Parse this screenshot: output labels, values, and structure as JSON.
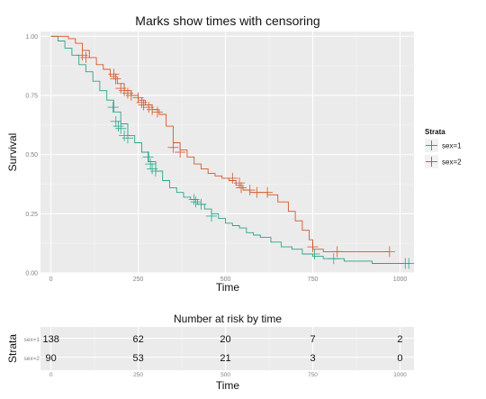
{
  "chart_data": [
    {
      "type": "line",
      "title": "Marks show times with censoring",
      "xlabel": "Time",
      "ylabel": "Survival",
      "xlim": [
        -30,
        1040
      ],
      "ylim": [
        0,
        1.02
      ],
      "x_ticks": [
        "0",
        "250",
        "500",
        "750",
        "1000"
      ],
      "y_ticks": [
        "0.00",
        "0.25",
        "0.50",
        "0.75",
        "1.00"
      ],
      "grid": true,
      "legend": {
        "title": "Strata",
        "position": "right"
      },
      "series": [
        {
          "name": "sex=1",
          "color": "#2aa58a",
          "points": [
            [
              0,
              1.0
            ],
            [
              20,
              0.98
            ],
            [
              40,
              0.95
            ],
            [
              60,
              0.92
            ],
            [
              80,
              0.88
            ],
            [
              100,
              0.85
            ],
            [
              120,
              0.81
            ],
            [
              140,
              0.77
            ],
            [
              160,
              0.73
            ],
            [
              180,
              0.68
            ],
            [
              200,
              0.63
            ],
            [
              220,
              0.58
            ],
            [
              240,
              0.55
            ],
            [
              260,
              0.51
            ],
            [
              280,
              0.47
            ],
            [
              300,
              0.43
            ],
            [
              320,
              0.39
            ],
            [
              340,
              0.36
            ],
            [
              360,
              0.34
            ],
            [
              380,
              0.32
            ],
            [
              400,
              0.31
            ],
            [
              420,
              0.29
            ],
            [
              440,
              0.27
            ],
            [
              460,
              0.25
            ],
            [
              480,
              0.23
            ],
            [
              500,
              0.21
            ],
            [
              520,
              0.2
            ],
            [
              540,
              0.19
            ],
            [
              560,
              0.17
            ],
            [
              580,
              0.16
            ],
            [
              600,
              0.15
            ],
            [
              630,
              0.13
            ],
            [
              660,
              0.11
            ],
            [
              690,
              0.1
            ],
            [
              720,
              0.08
            ],
            [
              750,
              0.07
            ],
            [
              780,
              0.06
            ],
            [
              800,
              0.06
            ],
            [
              840,
              0.05
            ],
            [
              880,
              0.05
            ],
            [
              920,
              0.04
            ],
            [
              960,
              0.04
            ],
            [
              1000,
              0.04
            ],
            [
              1020,
              0.04
            ]
          ],
          "censor": [
            [
              178,
              0.7
            ],
            [
              186,
              0.64
            ],
            [
              193,
              0.62
            ],
            [
              200,
              0.61
            ],
            [
              210,
              0.58
            ],
            [
              220,
              0.57
            ],
            [
              278,
              0.49
            ],
            [
              285,
              0.46
            ],
            [
              290,
              0.44
            ],
            [
              300,
              0.43
            ],
            [
              410,
              0.31
            ],
            [
              415,
              0.3
            ],
            [
              430,
              0.29
            ],
            [
              460,
              0.24
            ],
            [
              755,
              0.08
            ],
            [
              810,
              0.06
            ],
            [
              1015,
              0.04
            ],
            [
              1025,
              0.04
            ]
          ]
        },
        {
          "name": "sex=2",
          "color": "#d4582a",
          "points": [
            [
              0,
              1.0
            ],
            [
              30,
              1.0
            ],
            [
              50,
              0.99
            ],
            [
              70,
              0.97
            ],
            [
              90,
              0.94
            ],
            [
              110,
              0.91
            ],
            [
              130,
              0.88
            ],
            [
              150,
              0.86
            ],
            [
              170,
              0.83
            ],
            [
              190,
              0.8
            ],
            [
              210,
              0.77
            ],
            [
              230,
              0.75
            ],
            [
              250,
              0.73
            ],
            [
              270,
              0.71
            ],
            [
              290,
              0.69
            ],
            [
              310,
              0.67
            ],
            [
              330,
              0.62
            ],
            [
              350,
              0.55
            ],
            [
              370,
              0.52
            ],
            [
              390,
              0.49
            ],
            [
              410,
              0.46
            ],
            [
              430,
              0.44
            ],
            [
              450,
              0.42
            ],
            [
              470,
              0.41
            ],
            [
              490,
              0.4
            ],
            [
              510,
              0.39
            ],
            [
              530,
              0.37
            ],
            [
              550,
              0.35
            ],
            [
              570,
              0.34
            ],
            [
              600,
              0.34
            ],
            [
              620,
              0.33
            ],
            [
              650,
              0.3
            ],
            [
              680,
              0.26
            ],
            [
              700,
              0.22
            ],
            [
              720,
              0.18
            ],
            [
              740,
              0.14
            ],
            [
              750,
              0.1
            ],
            [
              780,
              0.09
            ],
            [
              850,
              0.09
            ],
            [
              900,
              0.09
            ],
            [
              970,
              0.09
            ]
          ],
          "censor": [
            [
              90,
              0.92
            ],
            [
              100,
              0.91
            ],
            [
              180,
              0.84
            ],
            [
              185,
              0.82
            ],
            [
              200,
              0.78
            ],
            [
              210,
              0.77
            ],
            [
              220,
              0.76
            ],
            [
              230,
              0.75
            ],
            [
              250,
              0.74
            ],
            [
              260,
              0.72
            ],
            [
              265,
              0.71
            ],
            [
              280,
              0.7
            ],
            [
              290,
              0.69
            ],
            [
              305,
              0.68
            ],
            [
              350,
              0.53
            ],
            [
              370,
              0.51
            ],
            [
              520,
              0.4
            ],
            [
              540,
              0.38
            ],
            [
              545,
              0.36
            ],
            [
              570,
              0.35
            ],
            [
              590,
              0.34
            ],
            [
              620,
              0.34
            ],
            [
              750,
              0.11
            ],
            [
              820,
              0.09
            ],
            [
              970,
              0.09
            ]
          ]
        }
      ]
    },
    {
      "type": "table",
      "title": "Number at risk by time",
      "xlabel": "Time",
      "ylabel": "Strata",
      "x_ticks": [
        "0",
        "250",
        "500",
        "750",
        "1000"
      ],
      "rows": [
        {
          "label": "sex=1",
          "values": [
            "138",
            "62",
            "20",
            "7",
            "2"
          ]
        },
        {
          "label": "sex=2",
          "values": [
            "90",
            "53",
            "21",
            "3",
            "0"
          ]
        }
      ]
    }
  ]
}
